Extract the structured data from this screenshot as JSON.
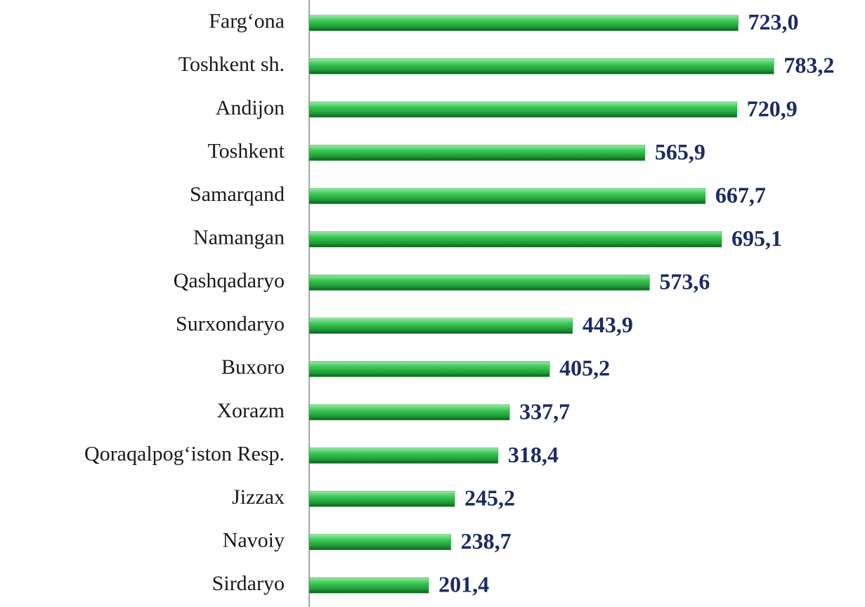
{
  "chart_data": {
    "type": "bar",
    "orientation": "horizontal",
    "categories": [
      "Farg‘ona",
      "Toshkent sh.",
      "Andijon",
      "Toshkent",
      "Samarqand",
      "Namangan",
      "Qashqadaryo",
      "Surxondaryo",
      "Buxoro",
      "Xorazm",
      "Qoraqalpog‘iston Resp.",
      "Jizzax",
      "Navoiy",
      "Sirdaryo"
    ],
    "values": [
      723.0,
      783.2,
      720.9,
      565.9,
      667.7,
      695.1,
      573.6,
      443.9,
      405.2,
      337.7,
      318.4,
      245.2,
      238.7,
      201.4
    ],
    "value_labels": [
      "723,0",
      "783,2",
      "720,9",
      "565,9",
      "667,7",
      "695,1",
      "573,6",
      "443,9",
      "405,2",
      "337,7",
      "318,4",
      "245,2",
      "238,7",
      "201,4"
    ],
    "color": "#22a83c",
    "xlim": [
      0,
      900
    ]
  }
}
